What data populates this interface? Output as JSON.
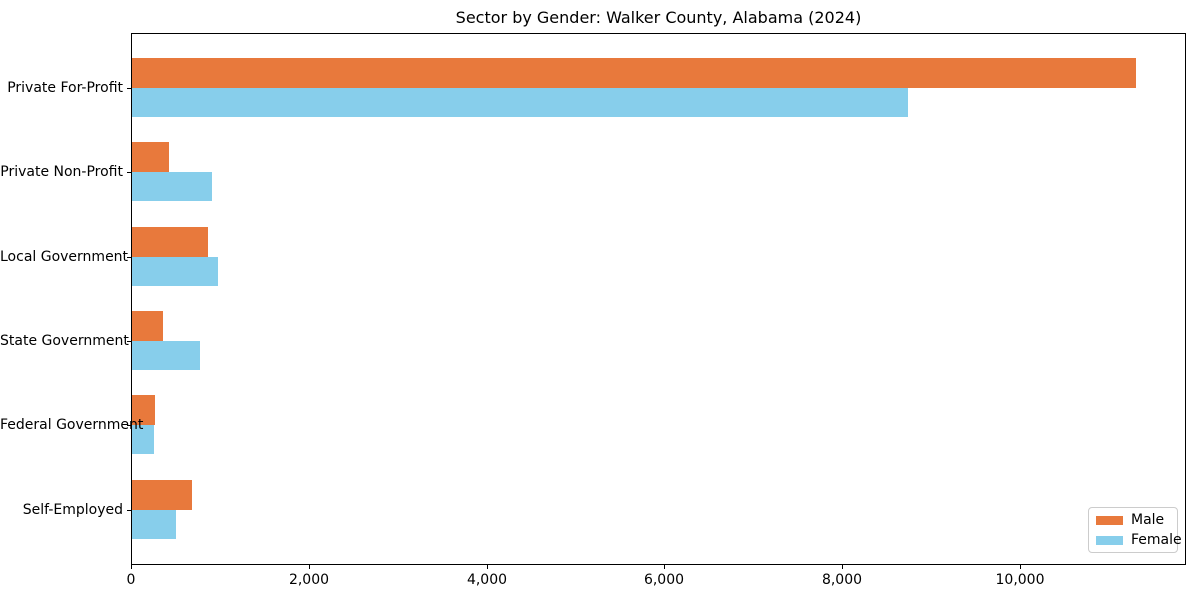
{
  "title": "Sector by Gender: Walker County, Alabama (2024)",
  "chart_data": {
    "type": "bar",
    "orientation": "horizontal",
    "title": "Sector by Gender: Walker County, Alabama (2024)",
    "xlabel": "",
    "ylabel": "",
    "categories": [
      "Private For-Profit",
      "Private Non-Profit",
      "Local Government",
      "State Government",
      "Federal Government",
      "Self-Employed"
    ],
    "series": [
      {
        "name": "Male",
        "color": "#E8793C",
        "values": [
          11300,
          420,
          860,
          350,
          260,
          680
        ]
      },
      {
        "name": "Female",
        "color": "#87CEEB",
        "values": [
          8730,
          900,
          970,
          770,
          250,
          490
        ]
      }
    ],
    "xlim": [
      0,
      11870
    ],
    "x_ticks": [
      0,
      2000,
      4000,
      6000,
      8000,
      10000
    ],
    "x_tick_labels": [
      "0",
      "2,000",
      "4,000",
      "6,000",
      "8,000",
      "10,000"
    ],
    "grid": false,
    "legend_position": "lower right"
  }
}
